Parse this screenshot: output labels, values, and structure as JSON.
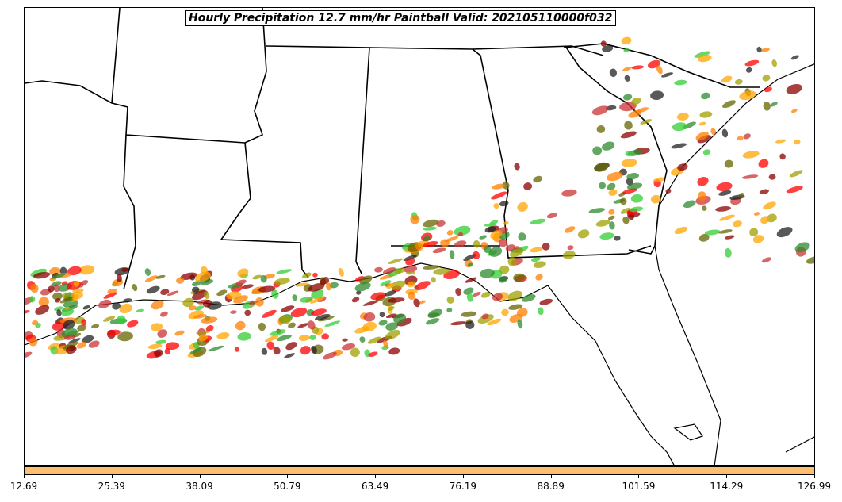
{
  "title": "Hourly Precipitation 12.7 mm/hr Paintball Valid: 202105110000f032",
  "colorbar": {
    "color": "#fdbf6f",
    "min": 12.69,
    "max": 126.99,
    "ticks": [
      "12.69",
      "25.39",
      "38.09",
      "50.79",
      "63.49",
      "76.19",
      "88.89",
      "101.59",
      "114.29",
      "126.99"
    ]
  },
  "member_colors": [
    "#ff0000",
    "#ff7f00",
    "#33cc33",
    "#8b0000",
    "#a0a000",
    "#2e8b2e",
    "#222222",
    "#ffa500",
    "#666600",
    "#cc3333"
  ]
}
